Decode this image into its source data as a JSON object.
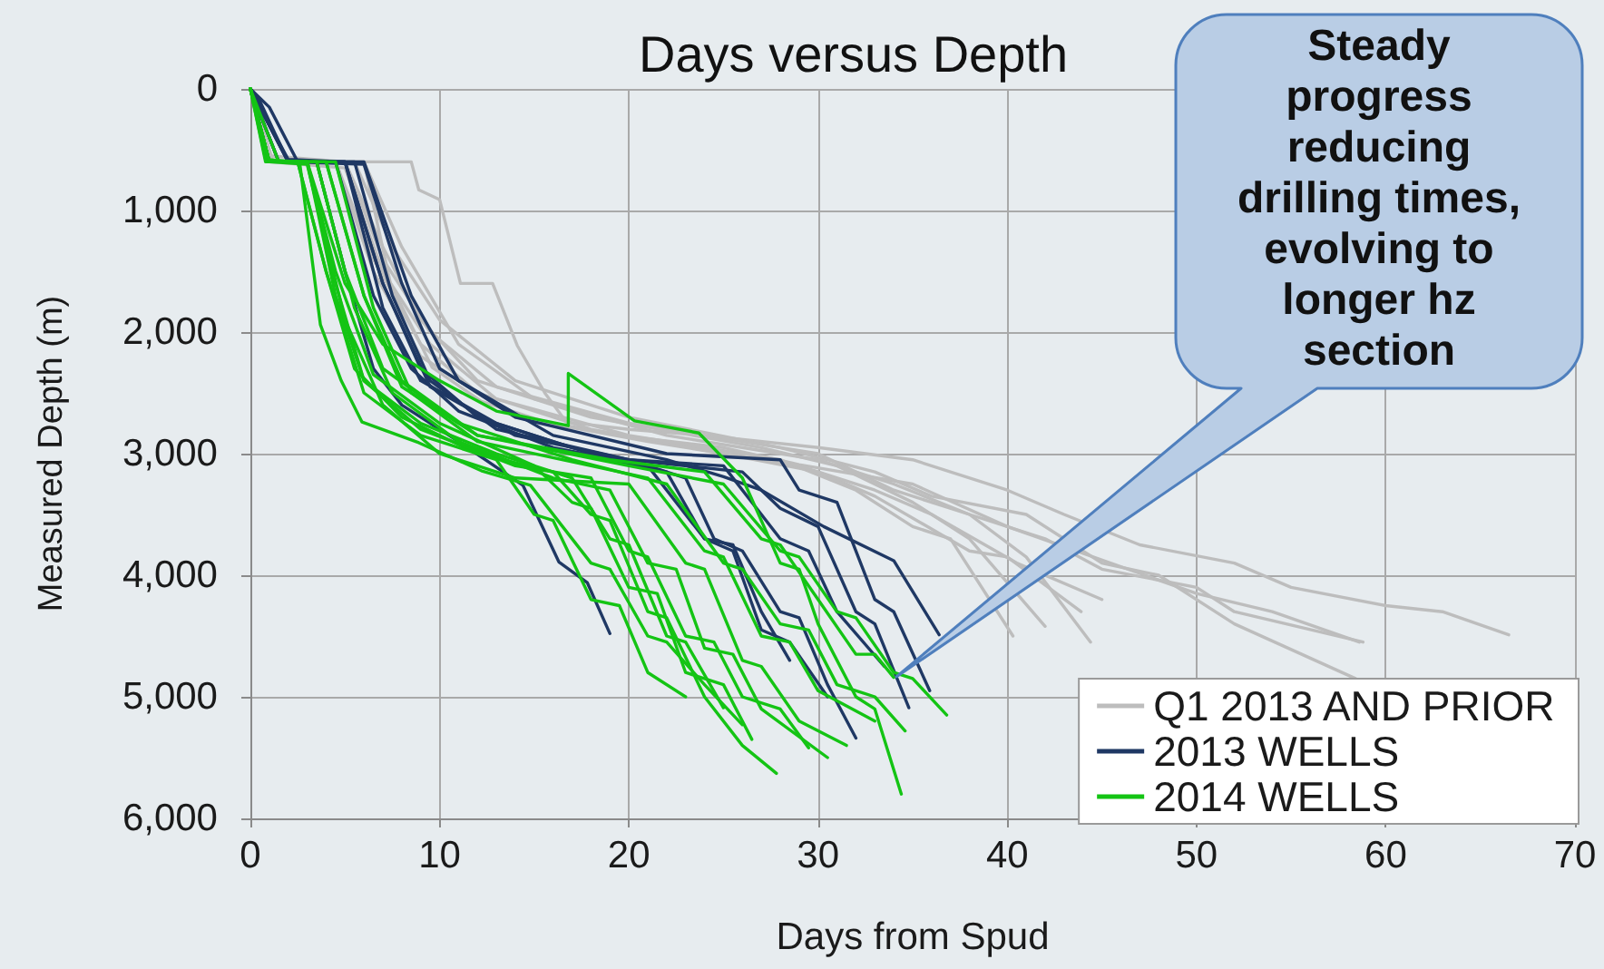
{
  "chart_data": {
    "type": "line",
    "title": "Days versus Depth",
    "xlabel": "Days from Spud",
    "ylabel": "Measured Depth (m)",
    "annotations": [
      "Steady progress reducing drilling times, evolving to longer hz section"
    ],
    "xlim": [
      0,
      70
    ],
    "xticks": [
      0,
      10,
      20,
      30,
      40,
      50,
      60,
      70
    ],
    "ylim": [
      6000,
      0
    ],
    "yticks": [
      0,
      {
        "value": 1000,
        "label": "1,000"
      },
      {
        "value": 2000,
        "label": "2,000"
      },
      {
        "value": 3000,
        "label": "3,000"
      },
      {
        "value": 4000,
        "label": "4,000"
      },
      {
        "value": 5000,
        "label": "5,000"
      },
      {
        "value": 6000,
        "label": "6,000"
      }
    ],
    "grid": true,
    "legend": "bottom right",
    "marker": "none",
    "line_style": "solid",
    "series": [
      {
        "name": "Q1 2013 AND PRIOR",
        "color": "#bdbdbd",
        "x": [
          0,
          1.5,
          8.5,
          8.9,
          10,
          11.1,
          12.8,
          14.1,
          15.6,
          16.7,
          20,
          24,
          30,
          35,
          40,
          43,
          47,
          52,
          55,
          60,
          63,
          66.5
        ],
        "values": [
          0,
          600,
          600,
          830,
          910,
          1600,
          1600,
          2110,
          2510,
          2740,
          2800,
          2850,
          2950,
          3050,
          3300,
          3500,
          3750,
          3900,
          4100,
          4250,
          4300,
          4490
        ]
      },
      {
        "color": "#bdbdbd",
        "x": [
          0,
          1,
          6,
          7.4,
          9.6,
          12.2,
          15.6,
          20,
          25,
          29,
          35,
          40,
          50,
          54,
          58.6
        ],
        "values": [
          0,
          600,
          600,
          1600,
          2290,
          2570,
          2740,
          2860,
          2950,
          3090,
          3250,
          3600,
          4150,
          4300,
          4550
        ]
      },
      {
        "color": "#bdbdbd",
        "x": [
          0,
          1.5,
          5.5,
          7.5,
          10,
          14,
          20,
          28,
          33,
          36,
          41,
          45,
          48,
          52,
          58.4
        ],
        "values": [
          0,
          600,
          600,
          1300,
          1900,
          2400,
          2700,
          2950,
          3150,
          3350,
          3500,
          3900,
          4000,
          4400,
          4850
        ]
      },
      {
        "color": "#bdbdbd",
        "x": [
          0,
          1,
          5,
          7,
          9.5,
          13,
          20,
          26,
          30,
          34,
          38,
          41,
          44.4
        ],
        "values": [
          0,
          600,
          600,
          1400,
          2000,
          2450,
          2750,
          2900,
          3000,
          3300,
          3500,
          3850,
          4550
        ]
      },
      {
        "color": "#bdbdbd",
        "x": [
          0,
          1,
          5,
          7,
          9,
          12,
          18,
          27,
          31,
          35,
          38,
          42
        ],
        "values": [
          0,
          550,
          600,
          1300,
          1900,
          2400,
          2700,
          2950,
          3100,
          3400,
          3700,
          4420
        ]
      },
      {
        "color": "#bdbdbd",
        "x": [
          0,
          1.2,
          4.5,
          6.5,
          9,
          12,
          18,
          25,
          30,
          33,
          38,
          40,
          43.9
        ],
        "values": [
          0,
          600,
          600,
          1400,
          2100,
          2500,
          2800,
          3000,
          3150,
          3350,
          3800,
          3850,
          4300
        ]
      },
      {
        "color": "#bdbdbd",
        "x": [
          0,
          1,
          5,
          7,
          9.5,
          13,
          20,
          28,
          32,
          35,
          37,
          40.3
        ],
        "values": [
          0,
          600,
          650,
          1500,
          2100,
          2550,
          2850,
          3050,
          3300,
          3600,
          3700,
          4500
        ]
      },
      {
        "color": "#bdbdbd",
        "x": [
          0,
          1.5,
          6,
          8,
          11,
          15,
          22,
          30,
          34,
          38,
          42,
          45,
          50,
          52,
          58.8
        ],
        "values": [
          0,
          600,
          600,
          1300,
          2100,
          2550,
          2850,
          3050,
          3250,
          3500,
          3700,
          3950,
          4100,
          4300,
          4550
        ]
      },
      {
        "color": "#bdbdbd",
        "x": [
          0,
          1,
          4.5,
          6.5,
          9,
          14,
          21,
          29,
          33,
          36,
          40.5,
          45
        ],
        "values": [
          0,
          600,
          600,
          1500,
          2200,
          2700,
          2900,
          3100,
          3300,
          3500,
          3900,
          4200
        ]
      },
      {
        "name": "2013 WELLS",
        "color": "#1f3864",
        "x": [
          0,
          0.5,
          2,
          3.5,
          5,
          6.5,
          8,
          11,
          14.4,
          16.3,
          17.8,
          19
        ],
        "values": [
          0,
          100,
          600,
          600,
          1500,
          2300,
          2600,
          2900,
          3260,
          3890,
          4060,
          4480
        ]
      },
      {
        "color": "#1f3864",
        "x": [
          0,
          1,
          2.5,
          5,
          7,
          9,
          12,
          17,
          21,
          23,
          24.5,
          26,
          28,
          29,
          30.5,
          32
        ],
        "values": [
          0,
          150,
          600,
          600,
          1600,
          2300,
          2700,
          2950,
          3100,
          3200,
          3700,
          3800,
          4300,
          4350,
          4900,
          5340
        ]
      },
      {
        "color": "#1f3864",
        "x": [
          0,
          2,
          5.5,
          7.5,
          9.5,
          13,
          20,
          26,
          28,
          30,
          32,
          33,
          34.8
        ],
        "values": [
          0,
          600,
          600,
          1700,
          2400,
          2800,
          3050,
          3150,
          3450,
          3600,
          4300,
          4400,
          5090
        ]
      },
      {
        "color": "#1f3864",
        "x": [
          0,
          2,
          6,
          8,
          10,
          14,
          22,
          28,
          29,
          31,
          33,
          34,
          35.9
        ],
        "values": [
          0,
          600,
          620,
          1600,
          2300,
          2700,
          3000,
          3050,
          3300,
          3400,
          4200,
          4300,
          4950
        ]
      },
      {
        "color": "#1f3864",
        "x": [
          0,
          1.5,
          6,
          8.5,
          11,
          16,
          22,
          25,
          27,
          30.3,
          34,
          36.4
        ],
        "values": [
          0,
          600,
          600,
          1700,
          2400,
          2850,
          3050,
          3190,
          3300,
          3600,
          3880,
          4490
        ]
      },
      {
        "color": "#1f3864",
        "x": [
          0,
          2,
          4.5,
          6.5,
          8.5,
          11,
          16,
          21,
          24,
          25.5,
          27,
          28.5,
          30.5
        ],
        "values": [
          0,
          600,
          600,
          1700,
          2300,
          2650,
          2950,
          3100,
          3700,
          3800,
          4450,
          4550,
          5000
        ]
      },
      {
        "color": "#1f3864",
        "x": [
          0,
          1.5,
          5,
          7,
          9,
          13,
          19,
          22,
          24,
          25.5,
          27,
          28.5
        ],
        "values": [
          0,
          600,
          600,
          1800,
          2400,
          2750,
          3050,
          3150,
          3700,
          3750,
          4300,
          4700
        ]
      },
      {
        "color": "#1f3864",
        "x": [
          0,
          2,
          5,
          7,
          9.5,
          14,
          20,
          25,
          28,
          29.5,
          31,
          33.5
        ],
        "values": [
          0,
          580,
          600,
          1600,
          2450,
          2850,
          3050,
          3100,
          3700,
          3800,
          4300,
          4750
        ]
      },
      {
        "name": "2014 WELLS",
        "color": "#14c414",
        "x": [
          0,
          1,
          3,
          5,
          7,
          10,
          13,
          16.8,
          16.8,
          20.3,
          23.7,
          26,
          28,
          29,
          30,
          32,
          33,
          34.4
        ],
        "values": [
          0,
          600,
          600,
          1600,
          2100,
          2400,
          2650,
          2770,
          2340,
          2730,
          2830,
          3200,
          3900,
          3950,
          4400,
          5000,
          5100,
          5800
        ]
      },
      {
        "color": "#14c414",
        "x": [
          0,
          0.8,
          2.5,
          4,
          5.5,
          8,
          12,
          16,
          18,
          19,
          21,
          22,
          24,
          26,
          27.8
        ],
        "values": [
          0,
          580,
          600,
          1500,
          2300,
          2700,
          3000,
          3150,
          3500,
          3550,
          4300,
          4350,
          5000,
          5400,
          5630
        ]
      },
      {
        "color": "#14c414",
        "x": [
          0,
          1,
          3,
          4.5,
          6,
          9,
          14,
          18,
          20,
          21,
          23,
          24.5,
          26,
          28,
          29.5
        ],
        "values": [
          0,
          600,
          600,
          1700,
          2400,
          2800,
          3100,
          3200,
          3800,
          3850,
          4500,
          4550,
          5000,
          5100,
          5420
        ]
      },
      {
        "color": "#14c414",
        "x": [
          0,
          1,
          3.5,
          5,
          7,
          11,
          17,
          22,
          25,
          26,
          28,
          29.5,
          31,
          33,
          34.6
        ],
        "values": [
          0,
          600,
          600,
          1500,
          2300,
          2750,
          3050,
          3250,
          3900,
          3950,
          4400,
          4450,
          4900,
          5000,
          5280
        ]
      },
      {
        "color": "#14c414",
        "x": [
          0,
          1,
          4,
          6,
          8,
          12,
          20,
          25,
          28,
          29,
          31,
          32,
          34,
          35,
          36.8
        ],
        "values": [
          0,
          600,
          600,
          1700,
          2400,
          2850,
          3100,
          3250,
          3800,
          3850,
          4300,
          4350,
          4800,
          4850,
          5150
        ]
      },
      {
        "color": "#14c414",
        "x": [
          0,
          0.8,
          2.6,
          3.7,
          4.8,
          5.9,
          8.9,
          12.2,
          14.8,
          18,
          19,
          21,
          22,
          24,
          26
        ],
        "values": [
          0,
          600,
          600,
          1940,
          2400,
          2740,
          2910,
          3140,
          3260,
          3900,
          3950,
          4500,
          4550,
          4900,
          5230
        ]
      },
      {
        "color": "#14c414",
        "x": [
          0,
          1,
          3,
          4.5,
          6,
          9,
          13,
          17,
          19,
          20,
          22,
          23,
          25
        ],
        "values": [
          0,
          600,
          600,
          1600,
          2400,
          2750,
          3000,
          3200,
          3700,
          3750,
          4500,
          4550,
          5090
        ]
      },
      {
        "color": "#14c414",
        "x": [
          0,
          1,
          4,
          6,
          8,
          12,
          19,
          24,
          27,
          28,
          30,
          32,
          33,
          34
        ],
        "values": [
          0,
          600,
          600,
          1700,
          2450,
          2850,
          3050,
          3150,
          3700,
          3750,
          4200,
          4650,
          4650,
          4840
        ]
      },
      {
        "color": "#14c414",
        "x": [
          0,
          1,
          3,
          4.5,
          6.5,
          10,
          15,
          17,
          18,
          20,
          21.5,
          23,
          25,
          26.5
        ],
        "values": [
          0,
          600,
          600,
          1500,
          2350,
          2750,
          3100,
          3400,
          3450,
          4100,
          4150,
          4800,
          4900,
          5350
        ]
      },
      {
        "color": "#14c414",
        "x": [
          0,
          1,
          3.5,
          5.5,
          7.5,
          11,
          16,
          19,
          21,
          22.5,
          24,
          25.5,
          27,
          30.5
        ],
        "values": [
          0,
          600,
          600,
          1800,
          2500,
          2900,
          3200,
          3300,
          3900,
          3950,
          4600,
          4650,
          5100,
          5500
        ]
      },
      {
        "color": "#14c414",
        "x": [
          0,
          1,
          2.5,
          4,
          6,
          9,
          13,
          15,
          16,
          18,
          19.5,
          21,
          23
        ],
        "values": [
          0,
          600,
          600,
          1500,
          2500,
          2850,
          3050,
          3500,
          3550,
          4200,
          4250,
          4800,
          5000
        ]
      },
      {
        "color": "#14c414",
        "x": [
          0,
          1,
          3,
          5,
          7,
          10,
          14,
          20,
          23,
          24,
          26,
          27,
          29,
          31.5
        ],
        "values": [
          0,
          600,
          620,
          1900,
          2600,
          3000,
          3200,
          3250,
          3900,
          3950,
          4700,
          4750,
          5200,
          5400
        ]
      },
      {
        "color": "#14c414",
        "x": [
          0,
          1.5,
          4.5,
          6.5,
          8.5,
          12,
          18,
          21,
          24,
          25,
          27,
          28.5,
          30,
          33
        ],
        "values": [
          0,
          600,
          600,
          1800,
          2500,
          2900,
          3100,
          3200,
          3800,
          3850,
          4500,
          4550,
          4950,
          5200
        ]
      }
    ]
  }
}
